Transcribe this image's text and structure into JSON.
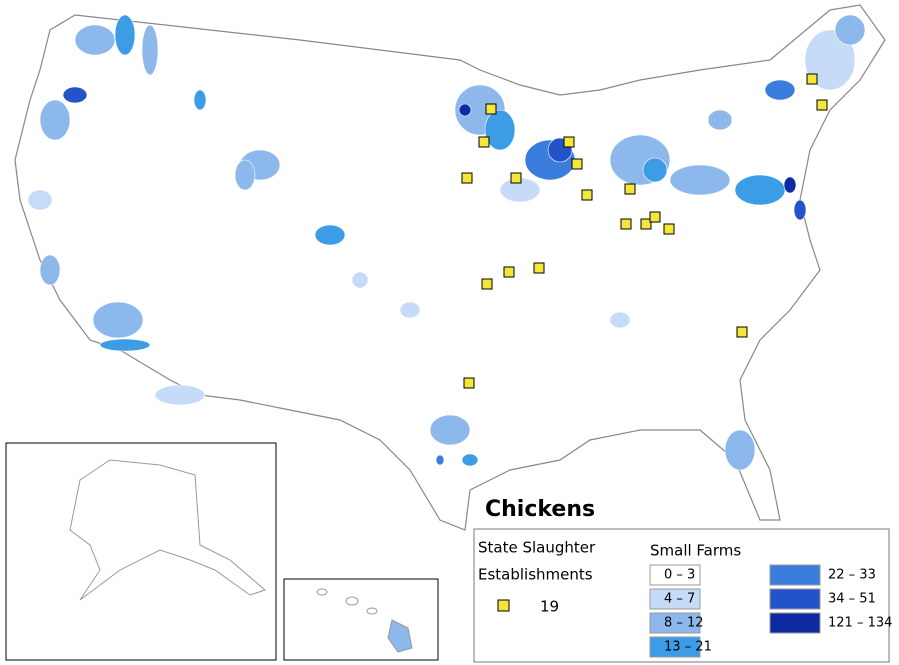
{
  "title": "Chickens",
  "establishments": {
    "title_lines": [
      "State Slaughter",
      "Establishments"
    ],
    "count": 19,
    "marker_color": "#f5e63a"
  },
  "small_farms": {
    "title": "Small Farms",
    "classes": [
      {
        "label": "0 – 3",
        "color": "#ffffff"
      },
      {
        "label": "4 – 7",
        "color": "#c6dbf7"
      },
      {
        "label": "8 – 12",
        "color": "#8db8ec"
      },
      {
        "label": "13 – 21",
        "color": "#3d9ce6"
      },
      {
        "label": "22 – 33",
        "color": "#3a7ddc"
      },
      {
        "label": "34 – 51",
        "color": "#2452c8"
      },
      {
        "label": "121 – 134",
        "color": "#0f2aa0"
      }
    ]
  }
}
